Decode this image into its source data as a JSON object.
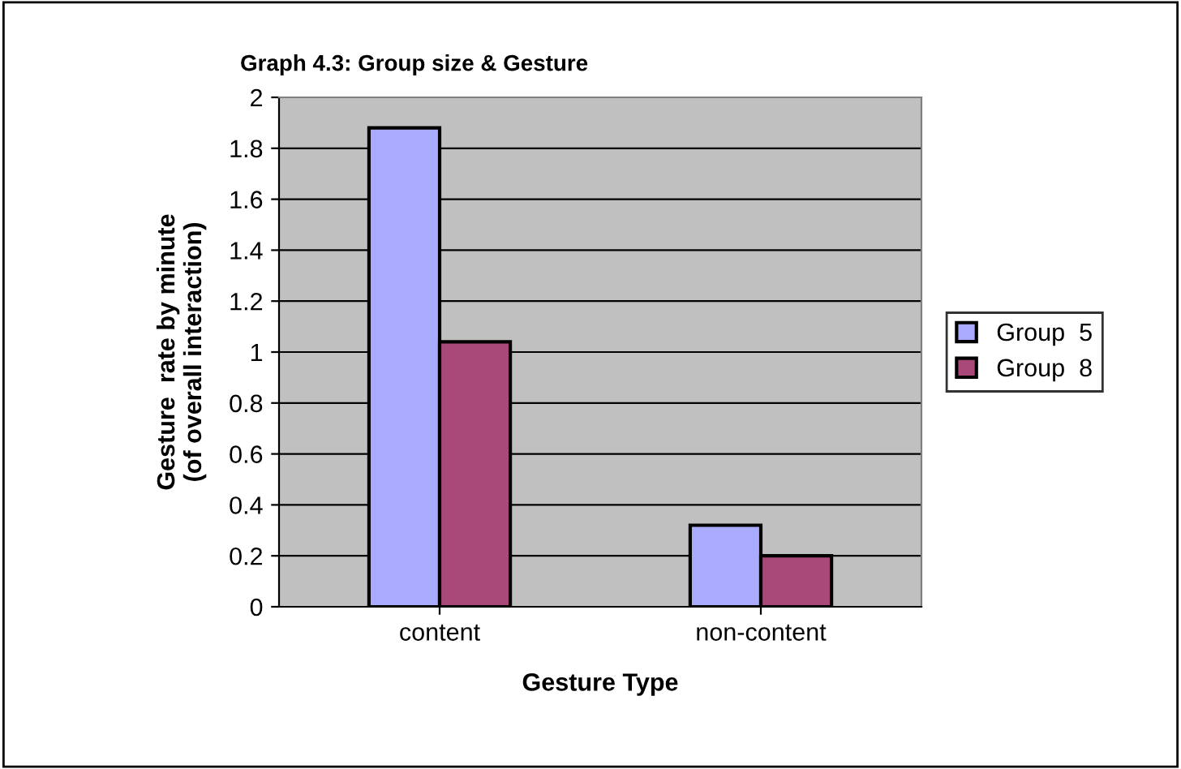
{
  "chart_data": {
    "type": "bar",
    "title": "Graph 4.3: Group size & Gesture",
    "xlabel": "Gesture Type",
    "ylabel": "Gesture  rate by minute\n(of overall interaction)",
    "categories": [
      "content",
      "non-content"
    ],
    "series": [
      {
        "name": "Group  5",
        "color": "#a9abff",
        "values": [
          1.88,
          0.32
        ]
      },
      {
        "name": "Group  8",
        "color": "#a8497a",
        "values": [
          1.04,
          0.2
        ]
      }
    ],
    "ylim": [
      0,
      2
    ],
    "yticks": [
      0,
      0.2,
      0.4,
      0.6,
      0.8,
      1,
      1.2,
      1.4,
      1.6,
      1.8,
      2
    ],
    "grid": "y",
    "legend": "right"
  }
}
